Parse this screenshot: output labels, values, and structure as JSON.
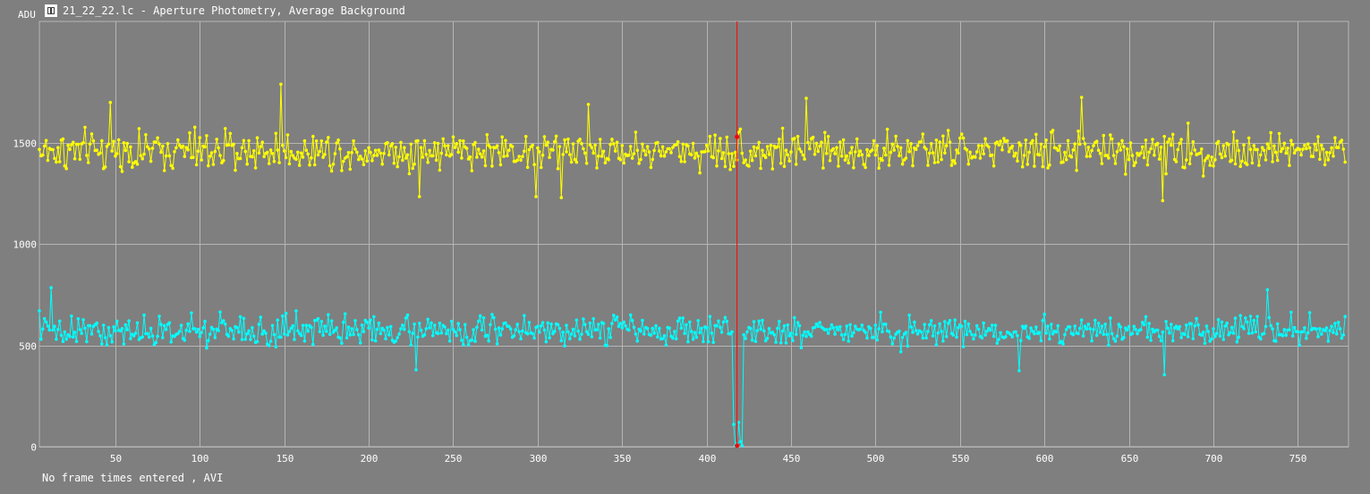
{
  "window": {
    "title": "21_22_22.lc - Aperture Photometry, Average Background",
    "icon": "lightcurve-file-icon"
  },
  "footer": {
    "status_text": "No frame times entered , AVI"
  },
  "colors": {
    "background": "#7f7f7f",
    "grid": "#b5b5b5",
    "series_1": "#ffff00",
    "series_2": "#00ffff",
    "cursor": "#ff0000",
    "text": "#ffffff"
  },
  "chart_data": {
    "type": "line",
    "ylabel": "ADU",
    "xlim": [
      5,
      780
    ],
    "ylim": [
      0,
      2100
    ],
    "x_ticks": [
      50,
      100,
      150,
      200,
      250,
      300,
      350,
      400,
      450,
      500,
      550,
      600,
      650,
      700,
      750
    ],
    "y_ticks": [
      0,
      500,
      1000,
      1500
    ],
    "grid": true,
    "cursor_frame": 418,
    "series": [
      {
        "color": "#ffff00",
        "baseline": 1460,
        "noise": 85,
        "spikes": [
          {
            "x": 148,
            "y": 1790
          },
          {
            "x": 47,
            "y": 1700
          },
          {
            "x": 622,
            "y": 1725
          },
          {
            "x": 330,
            "y": 1690
          },
          {
            "x": 459,
            "y": 1720
          },
          {
            "x": 314,
            "y": 1230
          },
          {
            "x": 299,
            "y": 1235
          },
          {
            "x": 670,
            "y": 1215
          },
          {
            "x": 230,
            "y": 1235
          }
        ]
      },
      {
        "color": "#00ffff",
        "baseline": 575,
        "noise": 65,
        "spikes": [
          {
            "x": 12,
            "y": 785
          },
          {
            "x": 732,
            "y": 775
          },
          {
            "x": 228,
            "y": 380
          },
          {
            "x": 585,
            "y": 375
          },
          {
            "x": 671,
            "y": 355
          }
        ],
        "dip": [
          {
            "x": 416,
            "y": 110
          },
          {
            "x": 417,
            "y": 5
          },
          {
            "x": 418,
            "y": 15
          },
          {
            "x": 419,
            "y": 120
          },
          {
            "x": 420,
            "y": 25
          },
          {
            "x": 421,
            "y": 5
          }
        ]
      }
    ]
  }
}
